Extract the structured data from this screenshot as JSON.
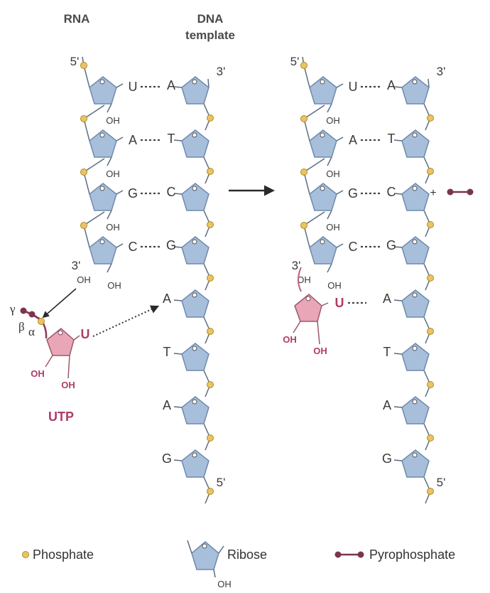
{
  "headers": {
    "rna": "RNA",
    "dna_line1": "DNA",
    "dna_line2": "template"
  },
  "strands": {
    "five_prime": "5'",
    "three_prime": "3'"
  },
  "left_panel": {
    "rna_bases": [
      "U",
      "A",
      "G",
      "C"
    ],
    "dna_bases": [
      "A",
      "T",
      "C",
      "G",
      "A",
      "T",
      "A",
      "G"
    ]
  },
  "right_panel": {
    "rna_bases": [
      "U",
      "A",
      "G",
      "C"
    ],
    "dna_bases": [
      "A",
      "T",
      "C",
      "G",
      "A",
      "T",
      "A",
      "G"
    ]
  },
  "oh": "OH",
  "utp": {
    "label": "UTP",
    "base": "U",
    "oh": "OH",
    "gamma": "γ",
    "beta": "β",
    "alpha": "α"
  },
  "reaction": {
    "plus": "+"
  },
  "legend": {
    "phosphate": "Phosphate",
    "ribose": "Ribose",
    "ribose_oh": "OH",
    "pyrophosphate": "Pyrophosphate"
  },
  "colors": {
    "sugar_fill": "#a8bfdc",
    "sugar_stroke": "#6f8aab",
    "phosphate": "#e8c466",
    "pyrophosphate": "#7a3550",
    "utp_pink": "#e9a6b6",
    "utp_text": "#b03a6a"
  }
}
